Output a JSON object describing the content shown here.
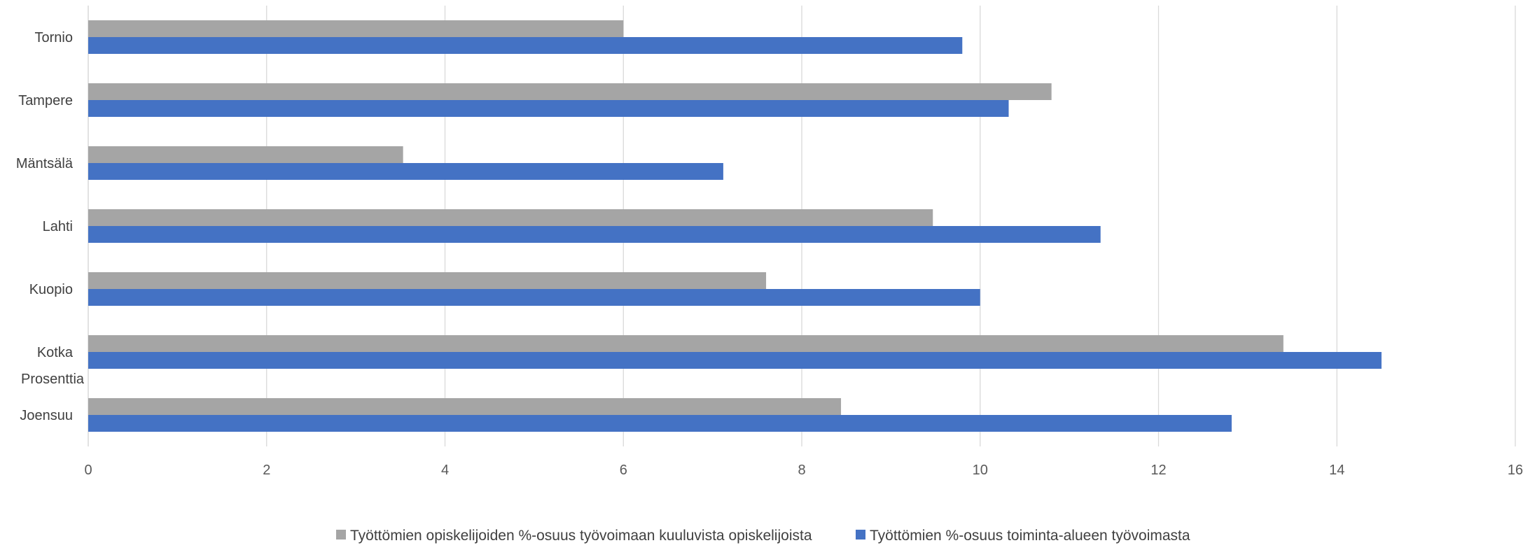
{
  "chart_data": {
    "type": "bar",
    "orientation": "horizontal",
    "title": "",
    "xlabel": "",
    "ylabel": "Prosenttia",
    "categories": [
      "Tornio",
      "Tampere",
      "Mäntsälä",
      "Lahti",
      "Kuopio",
      "Kotka",
      "Joensuu"
    ],
    "series": [
      {
        "name": "Työttömien opiskelijoiden %-osuus työvoimaan kuuluvista opiskelijoista",
        "color": "#a5a5a5",
        "values": [
          6.0,
          10.8,
          3.53,
          9.47,
          7.6,
          13.4,
          8.44
        ]
      },
      {
        "name": "Työttömien %-osuus toiminta-alueen työvoimasta",
        "color": "#4472c4",
        "values": [
          9.8,
          10.32,
          7.12,
          11.35,
          10.0,
          14.5,
          12.82
        ]
      }
    ],
    "xlim": [
      0,
      16
    ],
    "xticks": [
      "0",
      "2",
      "4",
      "6",
      "8",
      "10",
      "12",
      "14",
      "16"
    ],
    "grid": true,
    "legend": "bottom"
  }
}
